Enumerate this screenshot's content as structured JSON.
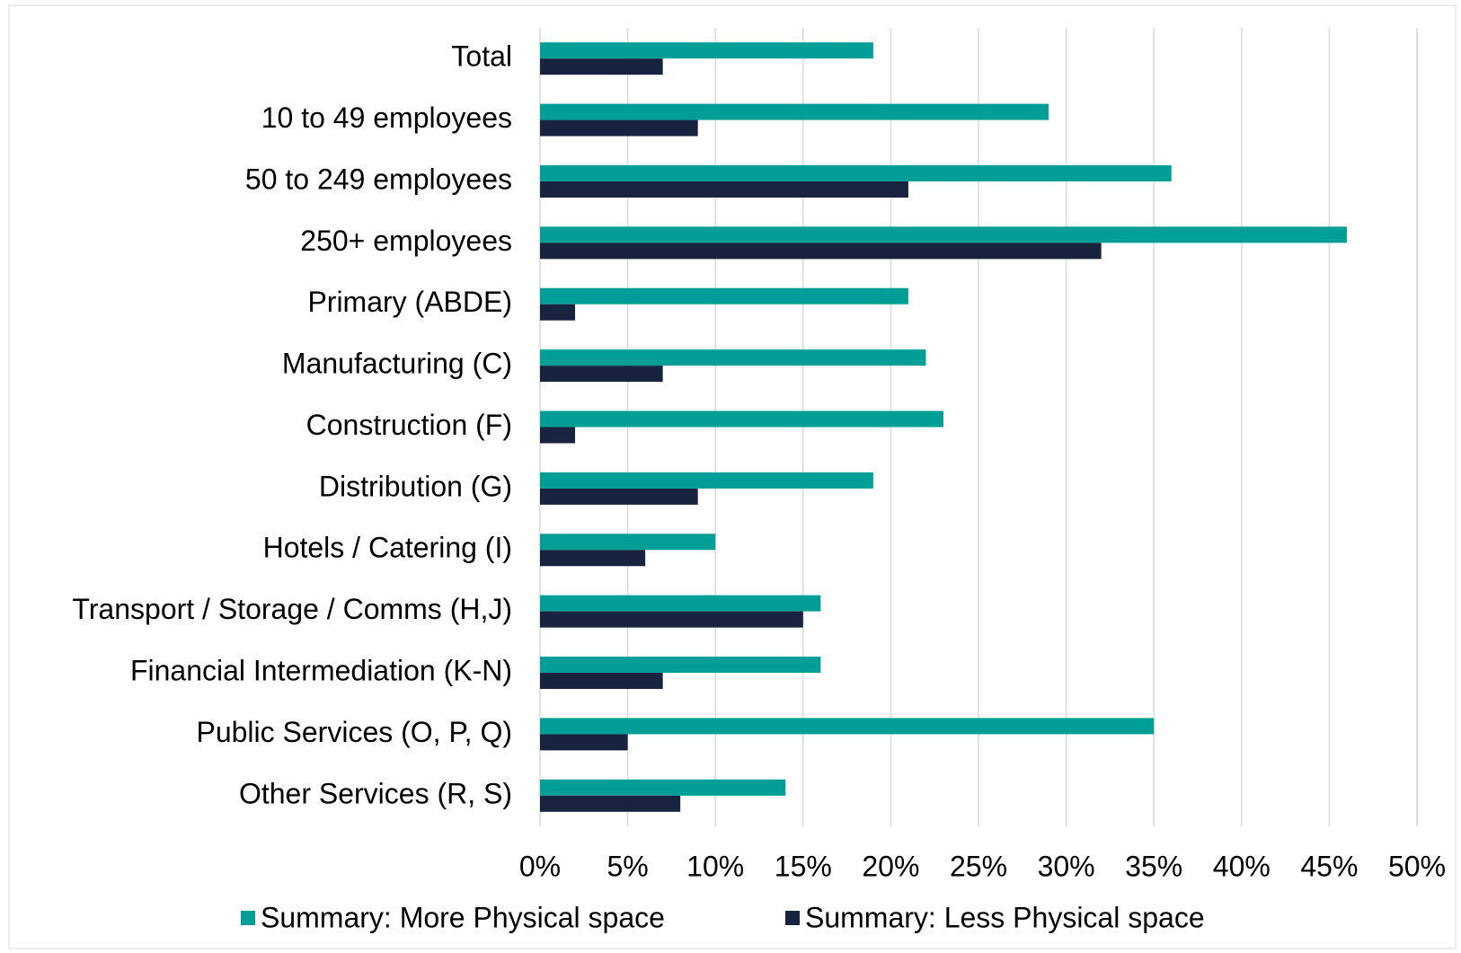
{
  "chart_data": {
    "type": "hbar",
    "categories": [
      "Total",
      "10 to 49 employees",
      "50 to 249 employees",
      "250+ employees",
      "Primary (ABDE)",
      "Manufacturing (C)",
      "Construction (F)",
      "Distribution (G)",
      "Hotels / Catering (I)",
      "Transport / Storage / Comms (H,J)",
      "Financial Intermediation (K-N)",
      "Public Services (O, P, Q)",
      "Other Services (R, S)"
    ],
    "series": [
      {
        "name": "Summary: More Physical space",
        "color": "#009e96",
        "values": [
          19,
          29,
          36,
          46,
          21,
          22,
          23,
          19,
          10,
          16,
          16,
          35,
          14
        ]
      },
      {
        "name": "Summary: Less Physical space",
        "color": "#17233f",
        "values": [
          7,
          9,
          21,
          32,
          2,
          7,
          2,
          9,
          6,
          15,
          7,
          5,
          8
        ]
      }
    ],
    "xlim": [
      0,
      50
    ],
    "xticks": [
      {
        "value": 0,
        "label": "0%"
      },
      {
        "value": 5,
        "label": "5%"
      },
      {
        "value": 10,
        "label": "10%"
      },
      {
        "value": 15,
        "label": "15%"
      },
      {
        "value": 20,
        "label": "20%"
      },
      {
        "value": 25,
        "label": "25%"
      },
      {
        "value": 30,
        "label": "30%"
      },
      {
        "value": 35,
        "label": "35%"
      },
      {
        "value": 40,
        "label": "40%"
      },
      {
        "value": 45,
        "label": "45%"
      },
      {
        "value": 50,
        "label": "50%"
      }
    ],
    "grid": true,
    "legend": "bottom"
  }
}
